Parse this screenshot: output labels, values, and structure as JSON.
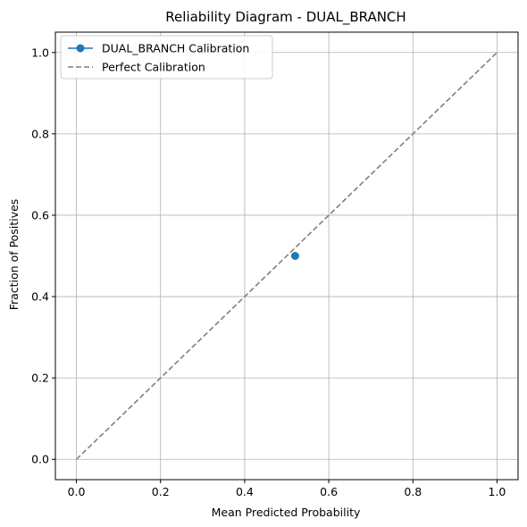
{
  "chart_data": {
    "type": "line",
    "title": "Reliability Diagram - DUAL_BRANCH",
    "xlabel": "Mean Predicted Probability",
    "ylabel": "Fraction of Positives",
    "xlim": [
      -0.05,
      1.05
    ],
    "ylim": [
      -0.05,
      1.05
    ],
    "xticks": [
      0.0,
      0.2,
      0.4,
      0.6,
      0.8,
      1.0
    ],
    "yticks": [
      0.0,
      0.2,
      0.4,
      0.6,
      0.8,
      1.0
    ],
    "xtick_labels": [
      "0.0",
      "0.2",
      "0.4",
      "0.6",
      "0.8",
      "1.0"
    ],
    "ytick_labels": [
      "0.0",
      "0.2",
      "0.4",
      "0.6",
      "0.8",
      "1.0"
    ],
    "grid": true,
    "legend_position": "top-left",
    "series": [
      {
        "name": "DUAL_BRANCH Calibration",
        "style": "solid-with-markers",
        "color": "#1f77b4",
        "x": [
          0.52
        ],
        "y": [
          0.5
        ]
      },
      {
        "name": "Perfect Calibration",
        "style": "dashed",
        "color": "#7f7f7f",
        "x": [
          0.0,
          1.0
        ],
        "y": [
          0.0,
          1.0
        ]
      }
    ]
  }
}
